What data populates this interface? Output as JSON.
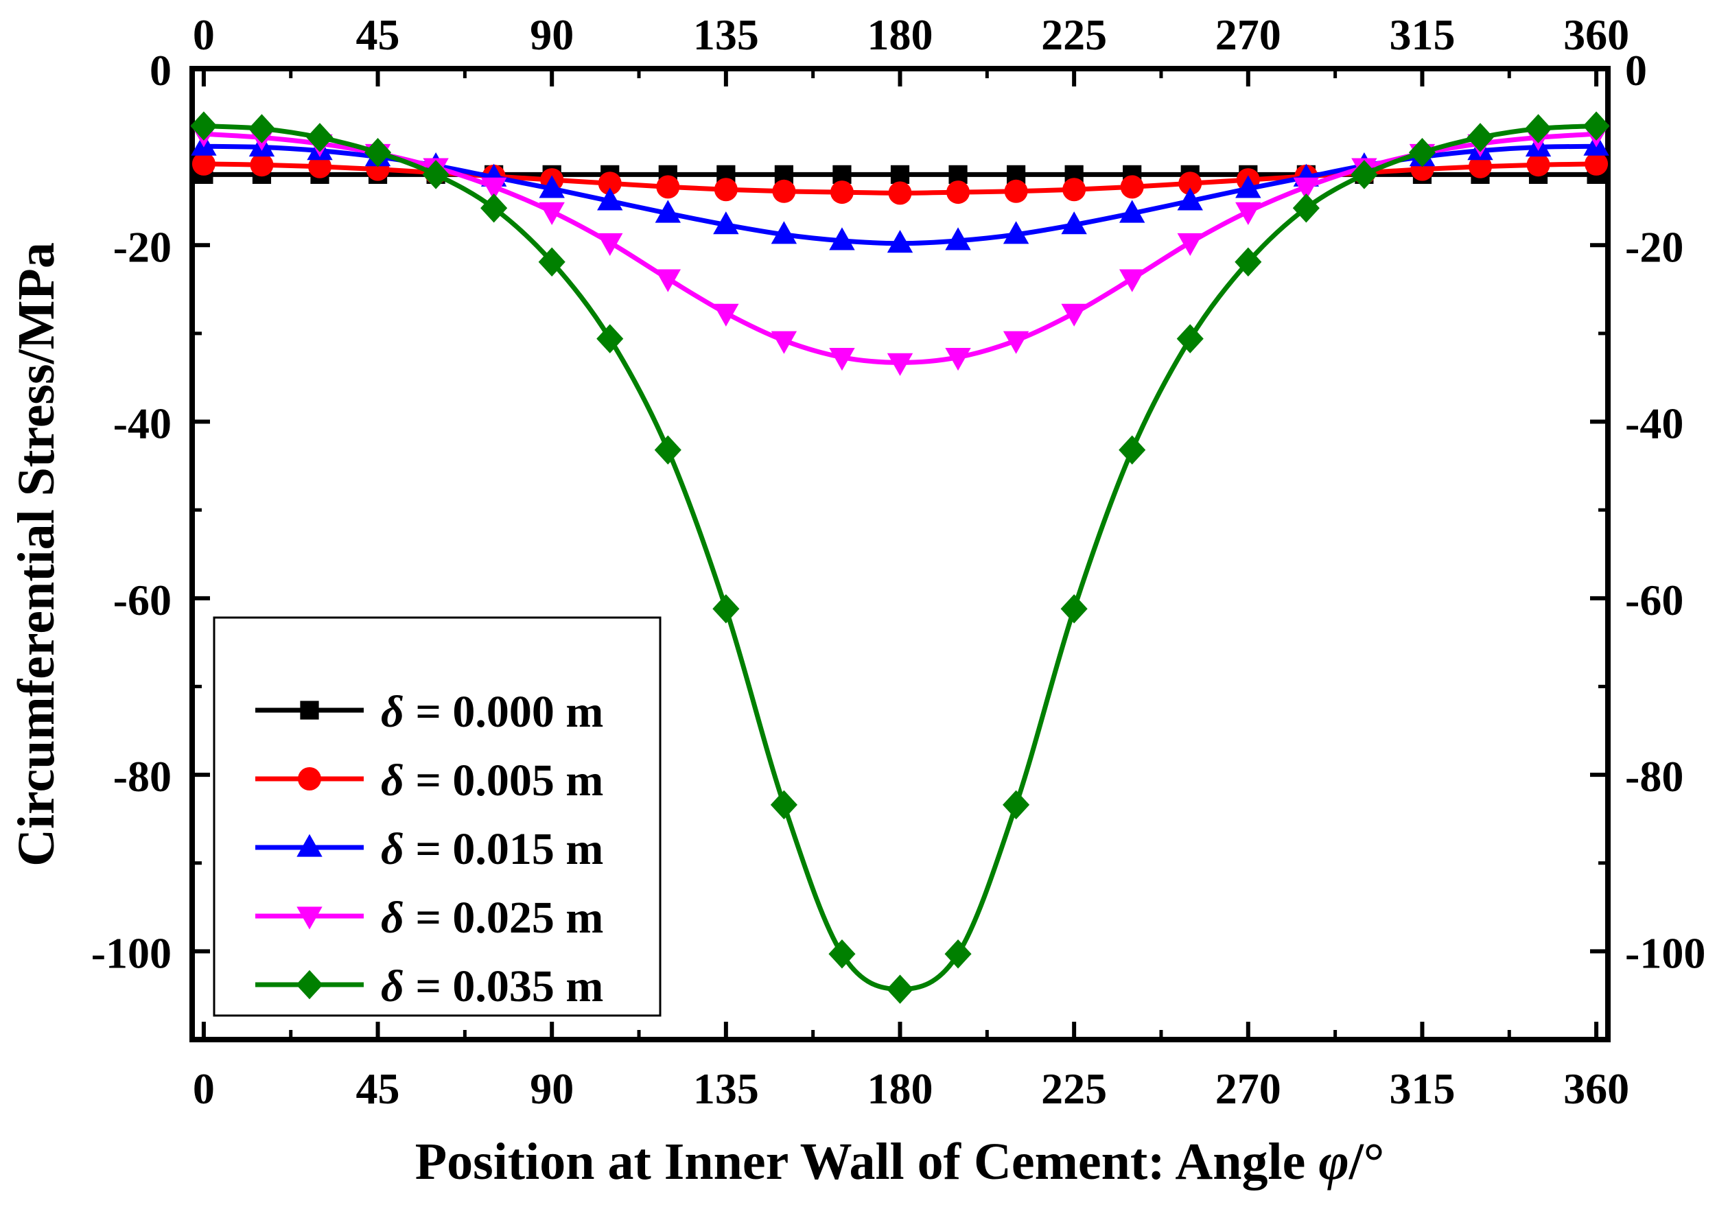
{
  "chart_data": {
    "type": "line",
    "title": "",
    "xlabel": "Position at Inner Wall of Cement: Angle ",
    "xlabel_symbol": "φ",
    "xlabel_unit": "/°",
    "ylabel": "Circumferential Stress/MPa",
    "xlim": [
      -3,
      363
    ],
    "ylim": [
      -110,
      0
    ],
    "xticks": [
      0,
      45,
      90,
      135,
      180,
      225,
      270,
      315,
      360
    ],
    "yticks": [
      0,
      -20,
      -40,
      -60,
      -80,
      -100
    ],
    "legend_position": "bottom-left",
    "legend_symbol": "δ",
    "x": [
      0,
      15,
      30,
      45,
      60,
      75,
      90,
      105,
      120,
      135,
      150,
      165,
      180,
      195,
      210,
      225,
      240,
      255,
      270,
      285,
      300,
      315,
      330,
      345,
      360
    ],
    "series": [
      {
        "name": " = 0.000 m",
        "color": "#000000",
        "marker": "square",
        "values": [
          -12.0,
          -12.0,
          -12.0,
          -12.0,
          -12.0,
          -12.0,
          -12.0,
          -12.0,
          -12.0,
          -12.0,
          -12.0,
          -12.0,
          -12.0,
          -12.0,
          -12.0,
          -12.0,
          -12.0,
          -12.0,
          -12.0,
          -12.0,
          -12.0,
          -12.0,
          -12.0,
          -12.0,
          -12.0
        ]
      },
      {
        "name": " = 0.005 m",
        "color": "#ff0000",
        "marker": "circle",
        "values": [
          -10.8,
          -10.9,
          -11.1,
          -11.4,
          -11.8,
          -12.2,
          -12.6,
          -13.0,
          -13.4,
          -13.7,
          -13.9,
          -14.0,
          -14.1,
          -14.0,
          -13.9,
          -13.7,
          -13.4,
          -13.0,
          -12.6,
          -12.2,
          -11.8,
          -11.4,
          -11.1,
          -10.9,
          -10.8
        ]
      },
      {
        "name": " = 0.015 m",
        "color": "#0000ff",
        "marker": "triangle-up",
        "values": [
          -8.8,
          -8.9,
          -9.3,
          -10.0,
          -11.0,
          -12.3,
          -13.6,
          -15.0,
          -16.4,
          -17.7,
          -18.8,
          -19.5,
          -19.8,
          -19.5,
          -18.8,
          -17.7,
          -16.4,
          -15.0,
          -13.6,
          -12.3,
          -11.0,
          -10.0,
          -9.3,
          -8.9,
          -8.8
        ]
      },
      {
        "name": " = 0.025 m",
        "color": "#ff00ff",
        "marker": "triangle-down",
        "values": [
          -7.4,
          -7.8,
          -8.5,
          -9.6,
          -11.2,
          -13.4,
          -16.2,
          -19.7,
          -23.8,
          -27.7,
          -30.8,
          -32.7,
          -33.3,
          -32.7,
          -30.8,
          -27.7,
          -23.8,
          -19.7,
          -16.2,
          -13.4,
          -11.2,
          -9.6,
          -8.5,
          -7.8,
          -7.4
        ]
      },
      {
        "name": " = 0.035 m",
        "color": "#008000",
        "marker": "diamond",
        "values": [
          -6.5,
          -6.8,
          -7.8,
          -9.5,
          -12.0,
          -15.8,
          -21.9,
          -30.6,
          -43.2,
          -61.2,
          -83.4,
          -100.3,
          -104.3,
          -100.3,
          -83.4,
          -61.2,
          -43.2,
          -30.6,
          -21.9,
          -15.8,
          -12.0,
          -9.5,
          -7.8,
          -6.8,
          -6.5
        ]
      }
    ]
  }
}
